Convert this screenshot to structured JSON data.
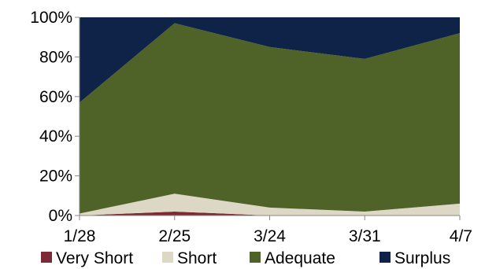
{
  "chart_data": {
    "type": "area",
    "stacked": true,
    "percent": true,
    "x": [
      "1/28",
      "2/25",
      "3/24",
      "3/31",
      "4/7"
    ],
    "ylim": [
      0,
      100
    ],
    "yticks": [
      "0%",
      "20%",
      "40%",
      "60%",
      "80%",
      "100%"
    ],
    "grid": false,
    "legend_position": "bottom",
    "series": [
      {
        "name": "Very Short",
        "values": [
          0,
          2,
          0,
          0,
          0
        ],
        "color": "#7b2a35"
      },
      {
        "name": "Short",
        "values": [
          1,
          9,
          4,
          2,
          6
        ],
        "color": "#ddd8c5"
      },
      {
        "name": "Adequate",
        "values": [
          56,
          86,
          81,
          77,
          86
        ],
        "color": "#4f6228"
      },
      {
        "name": "Surplus",
        "values": [
          43,
          3,
          15,
          21,
          8
        ],
        "color": "#0f2348"
      }
    ]
  }
}
